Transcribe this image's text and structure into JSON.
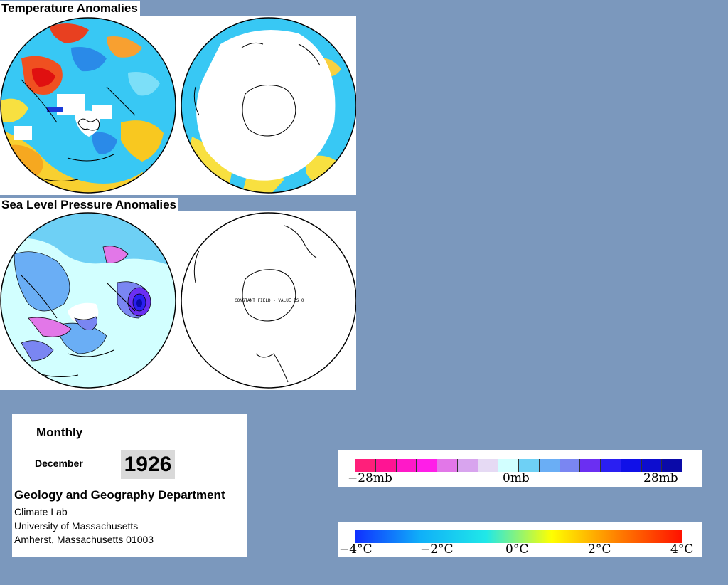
{
  "titles": {
    "temperature": "Temperature Anomalies",
    "pressure": "Sea Level Pressure Anomalies"
  },
  "maps": {
    "constant_field_note": "CONSTANT FIELD - VALUE IS 0"
  },
  "info": {
    "period": "Monthly",
    "month": "December",
    "year": "1926",
    "department": "Geology and Geography Department",
    "address_lines": [
      "Climate Lab",
      "University of Massachusetts",
      "Amherst, Massachusetts 01003"
    ]
  },
  "pressure_legend": {
    "labels": [
      "−28mb",
      "0mb",
      "28mb"
    ],
    "colors": [
      "#ff1f7a",
      "#ff1493",
      "#ff19c8",
      "#ff1ee8",
      "#e277e8",
      "#d8a4ee",
      "#e6daf4",
      "#d2ffff",
      "#6ed0f5",
      "#6aaef5",
      "#7a86f2",
      "#6b2ff2",
      "#2a1ff2",
      "#1010e8",
      "#0d0dcf",
      "#0a0aa8"
    ]
  },
  "temperature_legend": {
    "labels": [
      "−4°C",
      "−2°C",
      "0°C",
      "2°C",
      "4°C"
    ],
    "stops": [
      "#1030ff",
      "#10b0f8",
      "#20e8e8",
      "#ffff00",
      "#ff8000",
      "#ff1000"
    ]
  }
}
